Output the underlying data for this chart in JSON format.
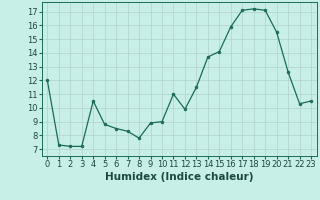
{
  "x": [
    0,
    1,
    2,
    3,
    4,
    5,
    6,
    7,
    8,
    9,
    10,
    11,
    12,
    13,
    14,
    15,
    16,
    17,
    18,
    19,
    20,
    21,
    22,
    23
  ],
  "y": [
    12,
    7.3,
    7.2,
    7.2,
    10.5,
    8.8,
    8.5,
    8.3,
    7.8,
    8.9,
    9.0,
    11.0,
    9.9,
    11.5,
    13.7,
    14.1,
    15.9,
    17.1,
    17.2,
    17.1,
    15.5,
    12.6,
    10.3,
    10.5
  ],
  "xlabel": "Humidex (Indice chaleur)",
  "xlim": [
    -0.5,
    23.5
  ],
  "ylim": [
    6.5,
    17.7
  ],
  "yticks": [
    7,
    8,
    9,
    10,
    11,
    12,
    13,
    14,
    15,
    16,
    17
  ],
  "xticks": [
    0,
    1,
    2,
    3,
    4,
    5,
    6,
    7,
    8,
    9,
    10,
    11,
    12,
    13,
    14,
    15,
    16,
    17,
    18,
    19,
    20,
    21,
    22,
    23
  ],
  "line_color": "#1a6b5a",
  "marker_color": "#1a6b5a",
  "bg_color": "#c8eee8",
  "grid_color": "#b0d4cc",
  "xlabel_fontsize": 7.5,
  "tick_fontsize": 6.0
}
